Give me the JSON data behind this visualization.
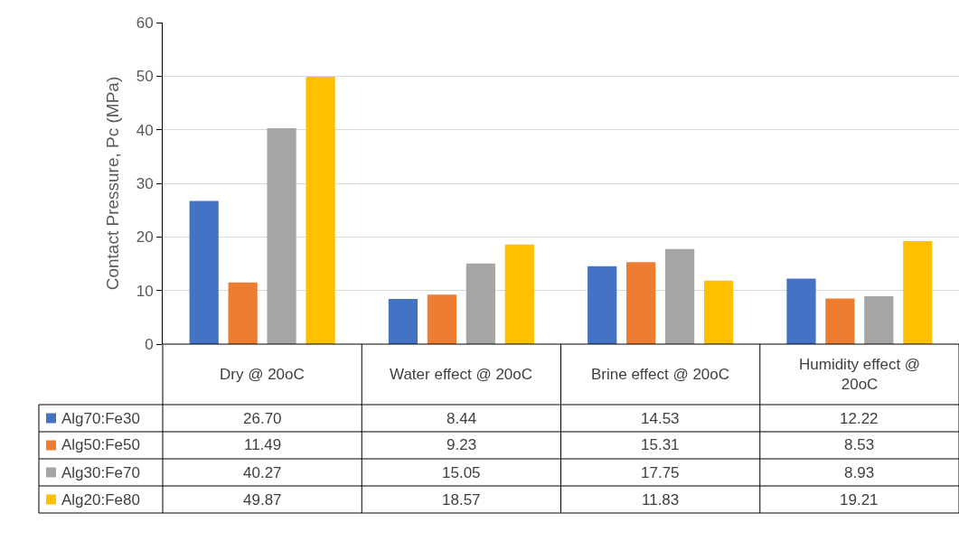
{
  "chart_data": {
    "type": "bar",
    "ylabel": "Contact Pressure, Pc (MPa)",
    "categories": [
      "Dry @ 20oC",
      "Water effect @ 20oC",
      "Brine effect @ 20oC",
      "Humidity effect @ 20oC"
    ],
    "series": [
      {
        "name": "Alg70:Fe30",
        "color": "#4472c4",
        "values": [
          26.7,
          8.44,
          14.53,
          12.22
        ],
        "value_labels": [
          "26.70",
          "8.44",
          "14.53",
          "12.22"
        ]
      },
      {
        "name": "Alg50:Fe50",
        "color": "#ed7d31",
        "values": [
          11.49,
          9.23,
          15.31,
          8.53
        ],
        "value_labels": [
          "11.49",
          "9.23",
          "15.31",
          "8.53"
        ]
      },
      {
        "name": "Alg30:Fe70",
        "color": "#a5a5a5",
        "values": [
          40.27,
          15.05,
          17.75,
          8.93
        ],
        "value_labels": [
          "40.27",
          "15.05",
          "17.75",
          "8.93"
        ]
      },
      {
        "name": "Alg20:Fe80",
        "color": "#ffc000",
        "values": [
          49.87,
          18.57,
          11.83,
          19.21
        ],
        "value_labels": [
          "49.87",
          "18.57",
          "11.83",
          "19.21"
        ]
      }
    ],
    "ylim": [
      0,
      60
    ],
    "yticks": [
      0,
      10,
      20,
      30,
      40,
      50,
      60
    ],
    "grid": "y",
    "legend": "bottom left"
  }
}
